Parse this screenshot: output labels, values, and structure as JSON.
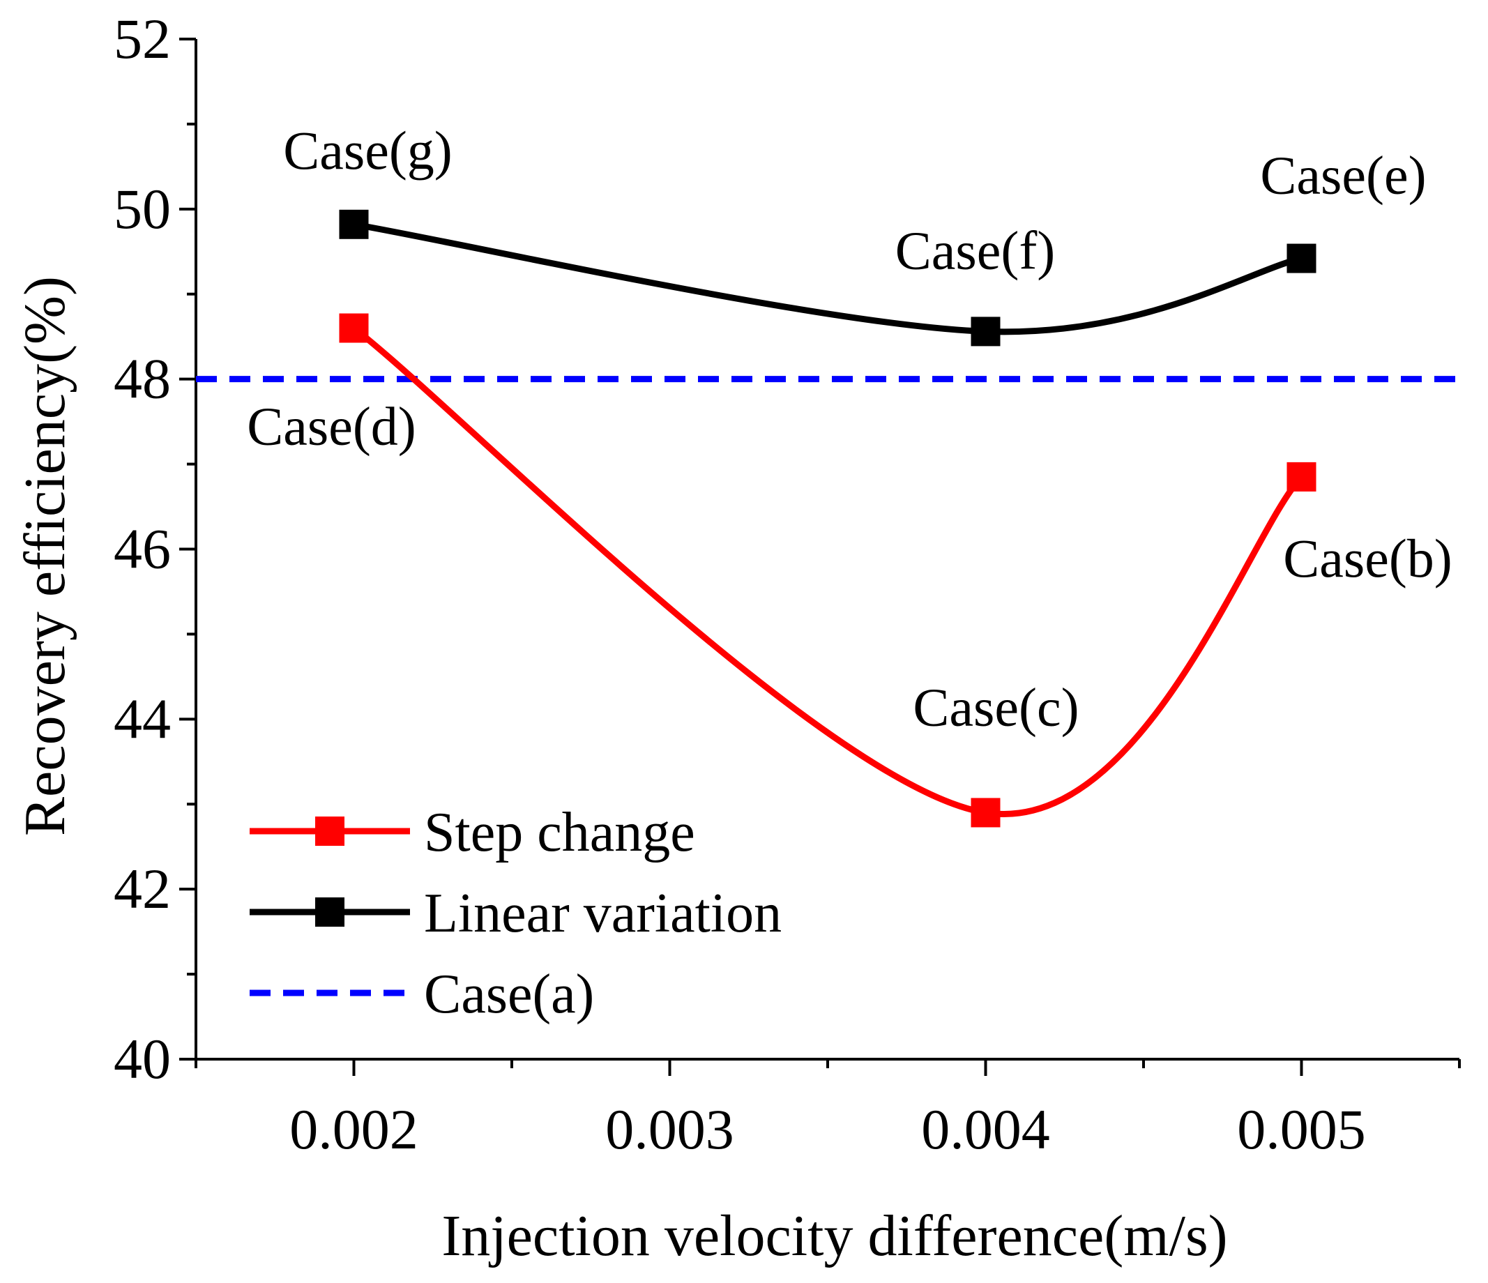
{
  "chart_data": {
    "type": "line",
    "title": "",
    "xlabel": "Injection velocity difference(m/s)",
    "ylabel": "Recovery efficiency(%)",
    "xlim": [
      0.0015,
      0.0055
    ],
    "ylim": [
      40,
      52
    ],
    "x_ticks": [
      0.002,
      0.003,
      0.004,
      0.005
    ],
    "x_tick_labels": [
      "0.002",
      "0.003",
      "0.004",
      "0.005"
    ],
    "y_ticks": [
      40,
      42,
      44,
      46,
      48,
      50,
      52
    ],
    "y_tick_labels": [
      "40",
      "42",
      "44",
      "46",
      "48",
      "50",
      "52"
    ],
    "grid": false,
    "legend_position": "bottom-left",
    "series": [
      {
        "name": "Step change",
        "color": "#ff0000",
        "style": "solid-square-markers",
        "x": [
          0.002,
          0.004,
          0.005
        ],
        "values": [
          48.6,
          42.9,
          46.85
        ]
      },
      {
        "name": "Linear variation",
        "color": "#000000",
        "style": "solid-square-markers",
        "x": [
          0.002,
          0.004,
          0.005
        ],
        "values": [
          49.82,
          48.56,
          49.42
        ]
      },
      {
        "name": "Case(a)",
        "color": "#0000ff",
        "style": "dashed",
        "x": [
          0.0015,
          0.0055
        ],
        "values": [
          48.0,
          48.0
        ]
      }
    ],
    "annotations": [
      {
        "text": "Case(g)",
        "x": 0.002,
        "y": 49.82
      },
      {
        "text": "Case(d)",
        "x": 0.002,
        "y": 48.6
      },
      {
        "text": "Case(f)",
        "x": 0.004,
        "y": 48.56
      },
      {
        "text": "Case(c)",
        "x": 0.004,
        "y": 42.9
      },
      {
        "text": "Case(e)",
        "x": 0.005,
        "y": 49.42
      },
      {
        "text": "Case(b)",
        "x": 0.005,
        "y": 46.85
      }
    ]
  }
}
